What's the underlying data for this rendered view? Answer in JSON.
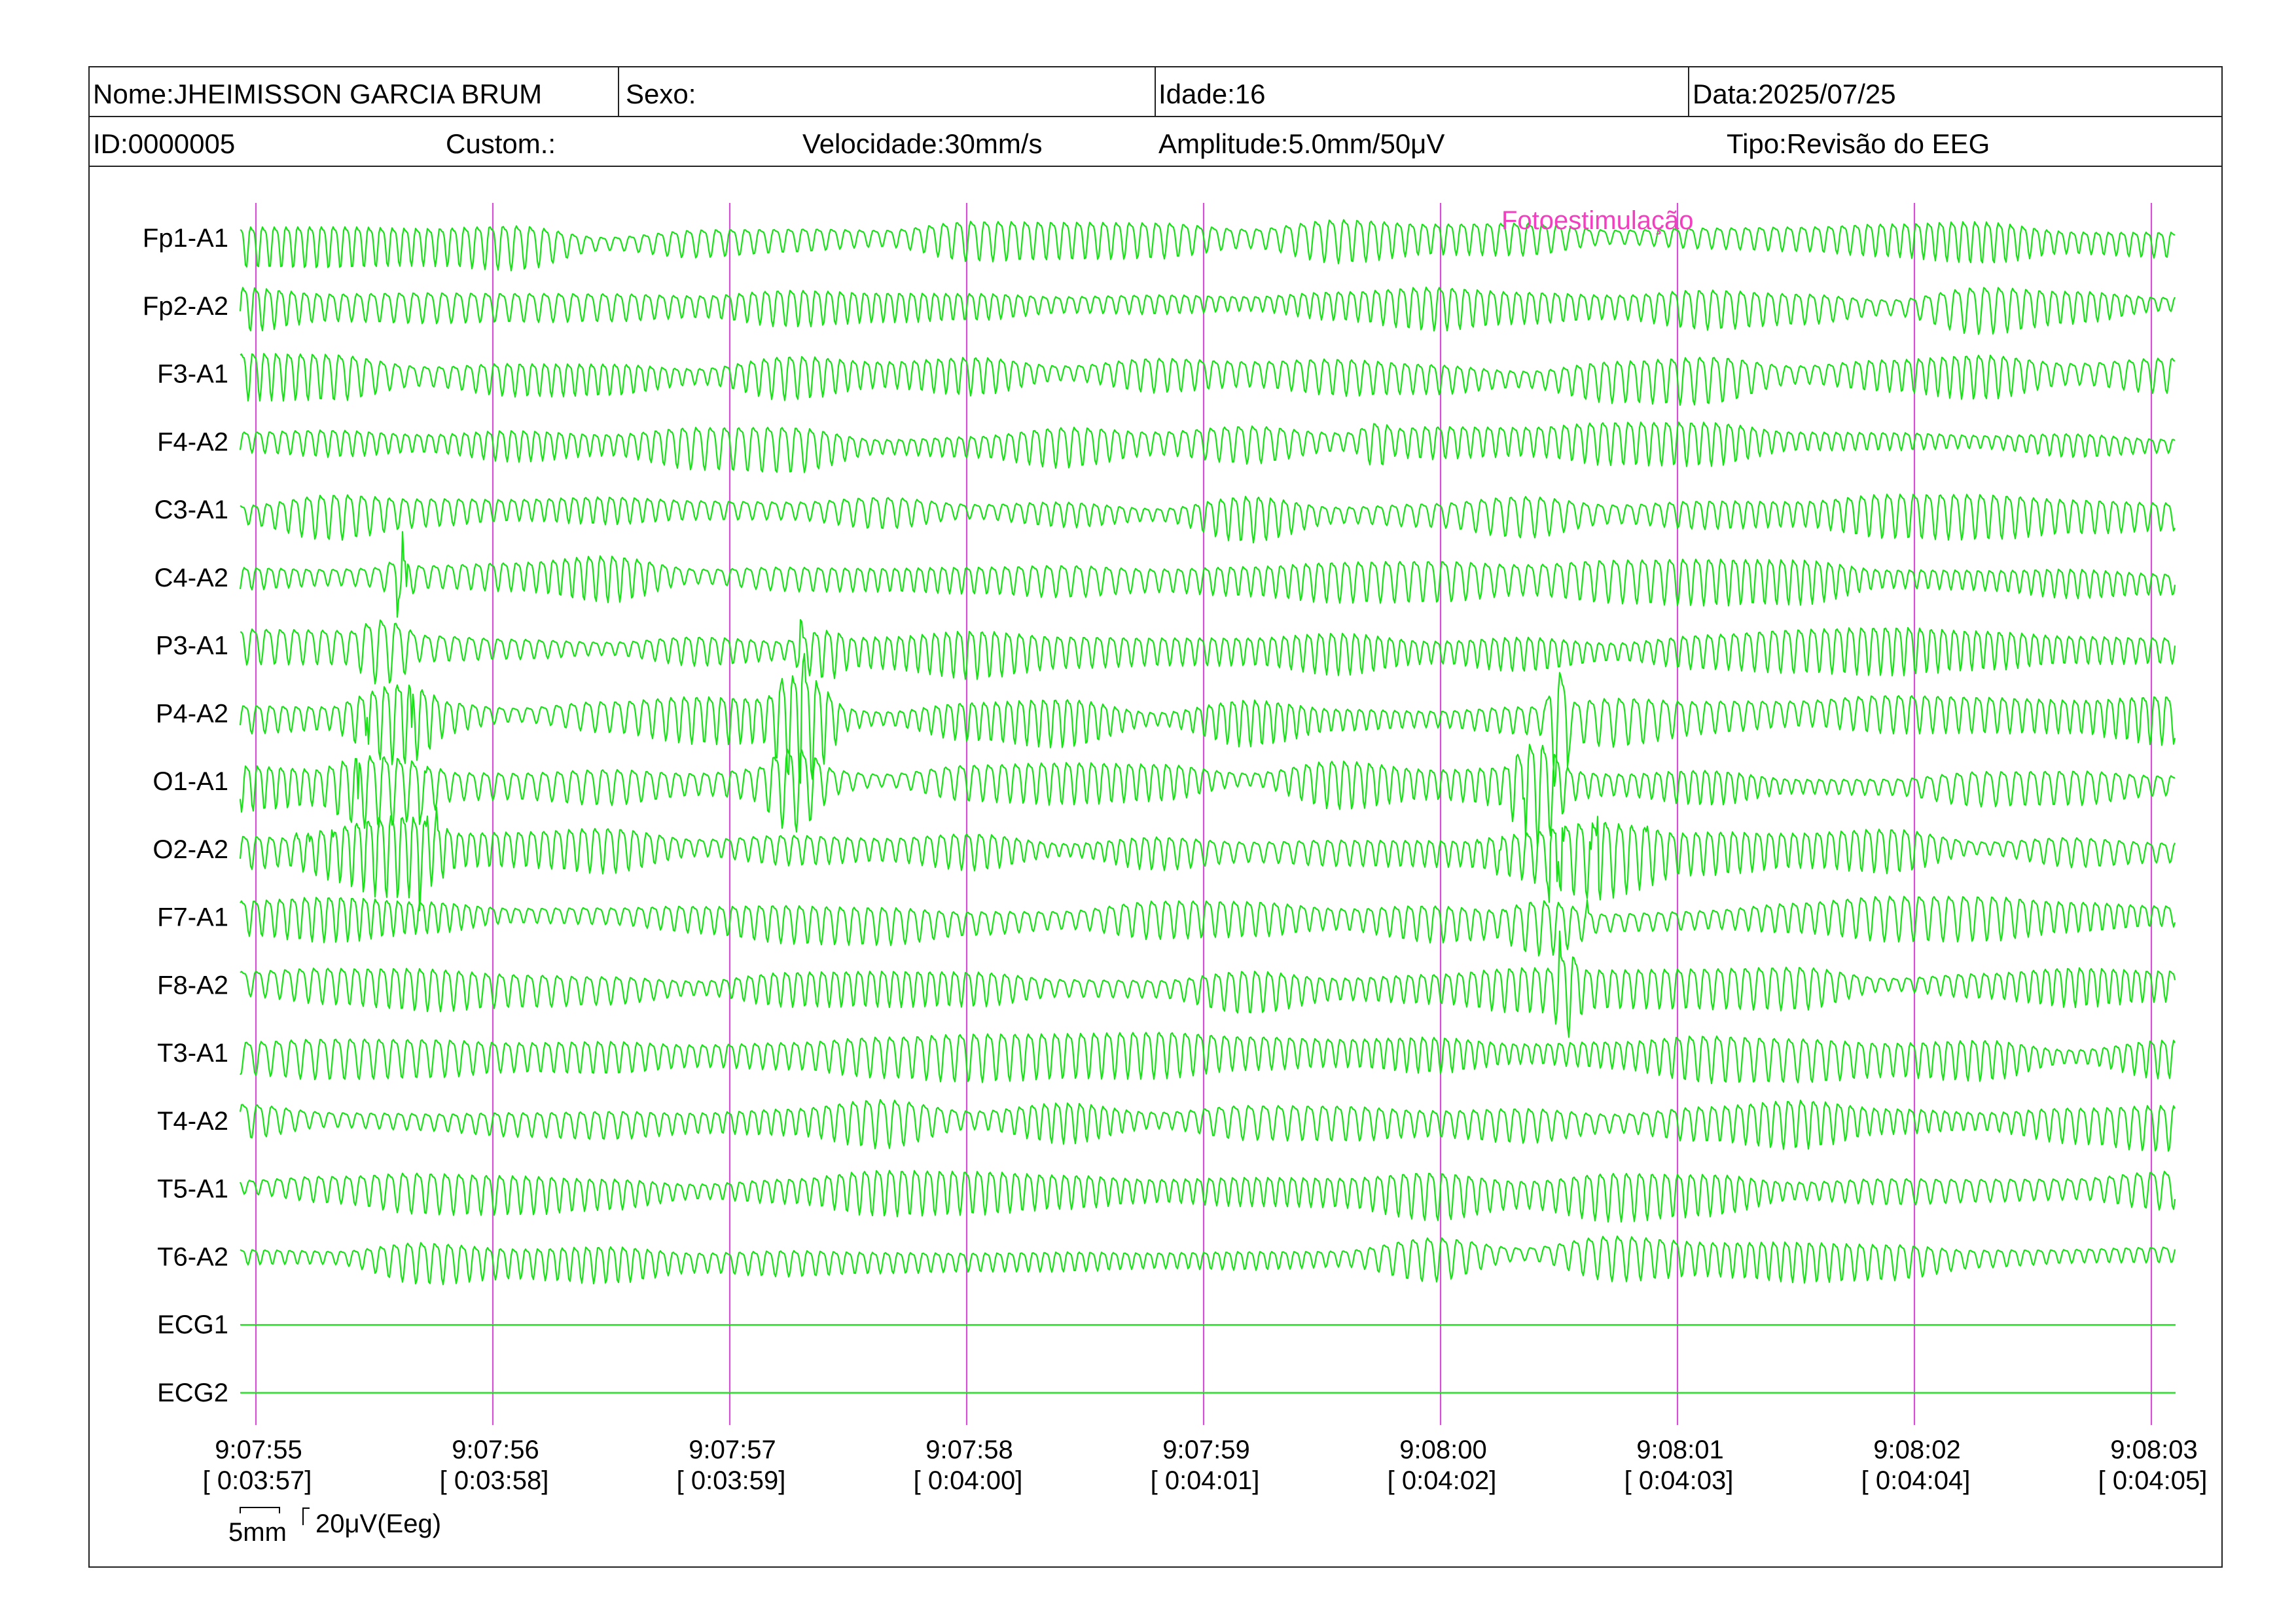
{
  "header": {
    "row1": {
      "name": "Nome:JHEIMISSON GARCIA BRUM",
      "sex": "Sexo:",
      "age": "Idade:16",
      "date": "Data:2025/07/25"
    },
    "row2": {
      "id": "ID:0000005",
      "custom": "Custom.:",
      "speed": "Velocidade:30mm/s",
      "amplitude": "Amplitude:5.0mm/50μV",
      "type": "Tipo:Revisão do EEG"
    }
  },
  "scale": {
    "time": "5mm",
    "amplitude": "20μV(Eeg)"
  },
  "colors": {
    "trace": "#19e019",
    "marker_line": "#d64fd6",
    "annotation": "#f23fbf",
    "border": "#222222"
  },
  "chart_data": {
    "type": "line",
    "title": "",
    "x_ticks": [
      {
        "time": "9:07:55",
        "elapsed": "[ 0:03:57]"
      },
      {
        "time": "9:07:56",
        "elapsed": "[ 0:03:58]"
      },
      {
        "time": "9:07:57",
        "elapsed": "[ 0:03:59]"
      },
      {
        "time": "9:07:58",
        "elapsed": "[ 0:04:00]"
      },
      {
        "time": "9:07:59",
        "elapsed": "[ 0:04:01]"
      },
      {
        "time": "9:08:00",
        "elapsed": "[ 0:04:02]"
      },
      {
        "time": "9:08:01",
        "elapsed": "[ 0:04:03]"
      },
      {
        "time": "9:08:02",
        "elapsed": "[ 0:04:04]"
      },
      {
        "time": "9:08:03",
        "elapsed": "[ 0:04:05]"
      }
    ],
    "series": [
      {
        "name": "Fp1-A1"
      },
      {
        "name": "Fp2-A2"
      },
      {
        "name": "F3-A1"
      },
      {
        "name": "F4-A2"
      },
      {
        "name": "C3-A1"
      },
      {
        "name": "C4-A2"
      },
      {
        "name": "P3-A1"
      },
      {
        "name": "P4-A2"
      },
      {
        "name": "O1-A1"
      },
      {
        "name": "O2-A2"
      },
      {
        "name": "F7-A1"
      },
      {
        "name": "F8-A2"
      },
      {
        "name": "T3-A1"
      },
      {
        "name": "T4-A2"
      },
      {
        "name": "T5-A1"
      },
      {
        "name": "T6-A2"
      },
      {
        "name": "ECG1"
      },
      {
        "name": "ECG2"
      }
    ],
    "annotations": [
      {
        "text": "Fotoestimulação"
      }
    ],
    "grid": "vertical second markers"
  }
}
